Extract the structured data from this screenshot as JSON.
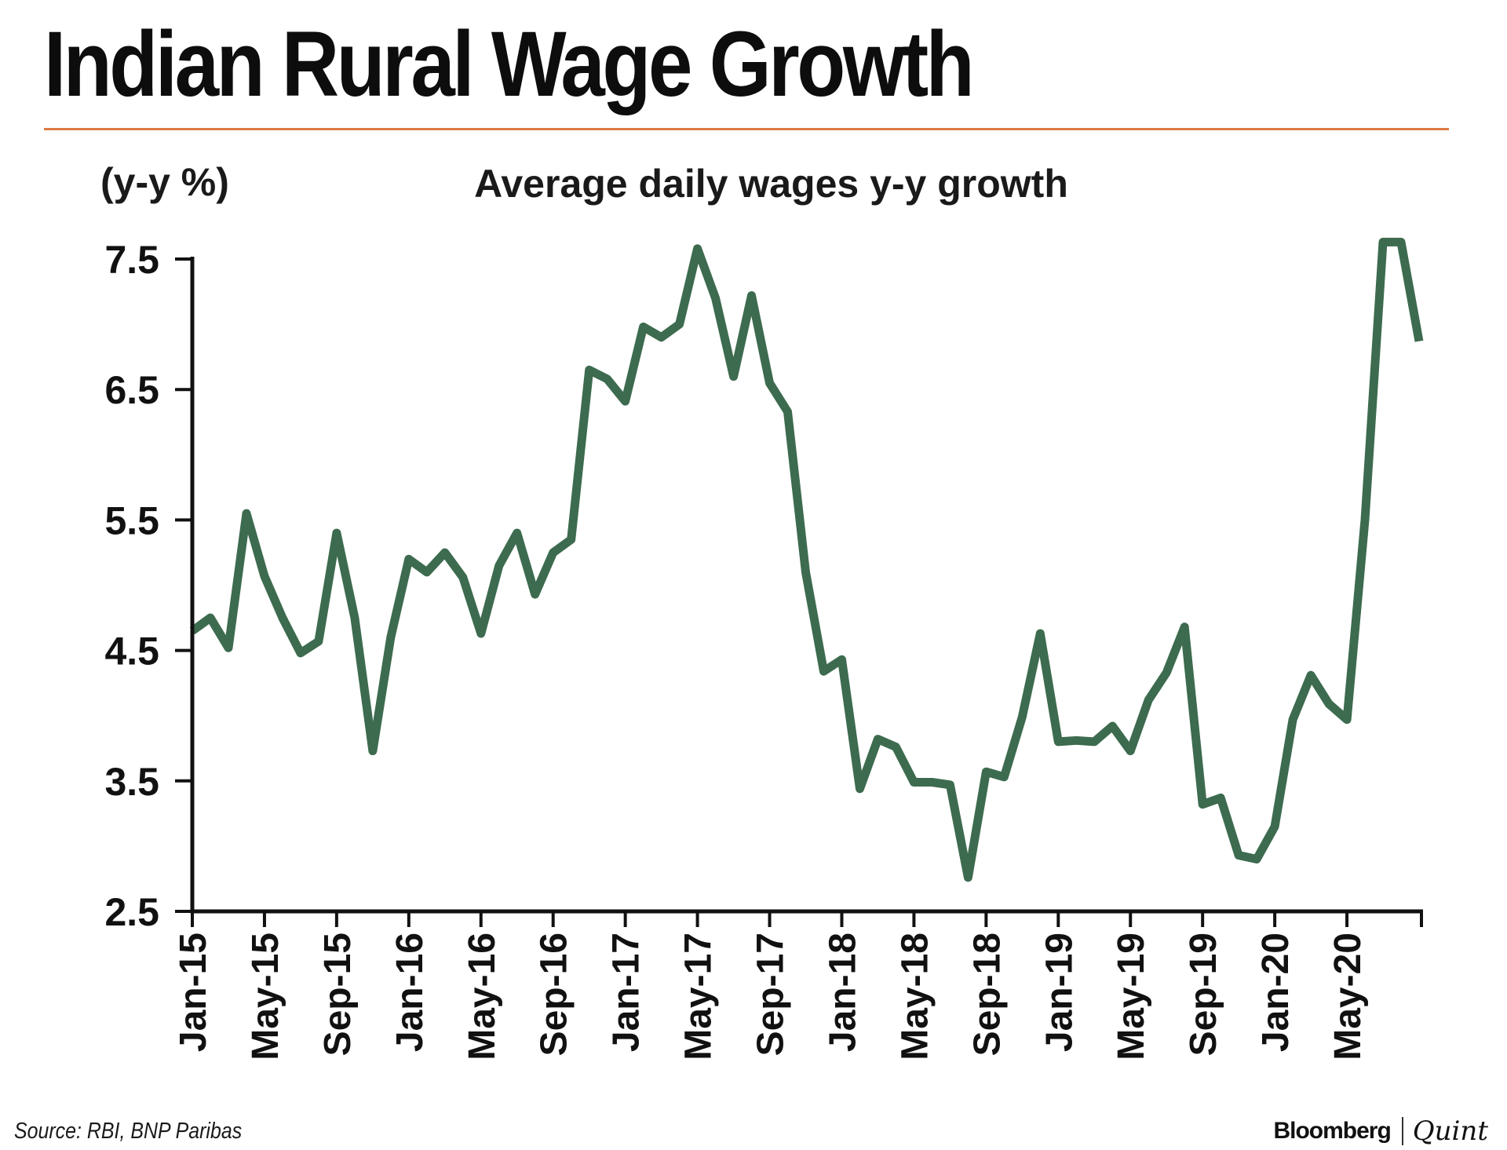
{
  "colors": {
    "rule": "#e07a45",
    "line": "#3d6b4f",
    "axis": "#111111",
    "text": "#111111"
  },
  "header": {
    "title": "Indian Rural Wage Growth"
  },
  "footer": {
    "source": "Source: RBI, BNP Paribas",
    "logo_left": "Bloomberg",
    "logo_right": "Quint"
  },
  "chart_data": {
    "type": "line",
    "title": "Average daily wages y-y growth",
    "ylabel": "(y-y %)",
    "xlabel": "",
    "ylim": [
      2.5,
      8.0
    ],
    "yticks": [
      2.5,
      3.5,
      4.5,
      5.5,
      6.5,
      7.5
    ],
    "ytick_labels": [
      "2.5",
      "3.5",
      "4.5",
      "5.5",
      "6.5",
      "7.5"
    ],
    "x_tick_labels": [
      "Jan-15",
      "May-15",
      "Sep-15",
      "Jan-16",
      "May-16",
      "Sep-16",
      "Jan-17",
      "May-17",
      "Sep-17",
      "Jan-18",
      "May-18",
      "Sep-18",
      "Jan-19",
      "May-19",
      "Sep-19",
      "Jan-20",
      "May-20"
    ],
    "x_tick_months": [
      0,
      4,
      8,
      12,
      16,
      20,
      24,
      28,
      32,
      36,
      40,
      44,
      48,
      52,
      56,
      60,
      64
    ],
    "x_start": "Jan-15",
    "x_end": "Sep-20",
    "grid": false,
    "legend": "none",
    "series": [
      {
        "x": [
          "Jan-15",
          "Feb-15",
          "Mar-15",
          "Apr-15",
          "May-15",
          "Jun-15",
          "Jul-15",
          "Aug-15",
          "Sep-15",
          "Oct-15",
          "Nov-15",
          "Dec-15",
          "Jan-16",
          "Feb-16",
          "Mar-16",
          "Apr-16",
          "May-16",
          "Jun-16",
          "Jul-16",
          "Aug-16",
          "Sep-16",
          "Oct-16",
          "Nov-16",
          "Dec-16",
          "Jan-17",
          "Feb-17",
          "Mar-17",
          "Apr-17",
          "May-17",
          "Jun-17",
          "Jul-17",
          "Aug-17",
          "Sep-17",
          "Oct-17",
          "Nov-17",
          "Dec-17",
          "Jan-18",
          "Feb-18",
          "Mar-18",
          "Apr-18",
          "May-18",
          "Jun-18",
          "Jul-18",
          "Aug-18",
          "Sep-18",
          "Oct-18",
          "Nov-18",
          "Dec-18",
          "Jan-19",
          "Feb-19",
          "Mar-19",
          "Apr-19",
          "May-19",
          "Jun-19",
          "Jul-19",
          "Aug-19",
          "Sep-19",
          "Oct-19",
          "Nov-19",
          "Dec-19",
          "Jan-20",
          "Feb-20",
          "Mar-20",
          "Apr-20",
          "May-20",
          "Jun-20",
          "Jul-20",
          "Aug-20",
          "Sep-20"
        ],
        "values": [
          4.65,
          4.75,
          4.52,
          5.55,
          5.07,
          4.75,
          4.48,
          4.57,
          5.4,
          4.75,
          3.73,
          4.6,
          5.2,
          5.1,
          5.25,
          5.06,
          4.63,
          5.15,
          5.4,
          4.93,
          5.25,
          5.35,
          6.65,
          6.58,
          6.41,
          6.98,
          6.9,
          7.0,
          7.58,
          7.2,
          6.6,
          7.22,
          6.55,
          6.33,
          5.1,
          4.34,
          4.43,
          3.44,
          3.82,
          3.76,
          3.49,
          3.49,
          3.47,
          2.76,
          3.57,
          3.53,
          3.99,
          4.63,
          3.8,
          3.81,
          3.8,
          3.92,
          3.73,
          4.12,
          4.33,
          4.68,
          3.32,
          3.37,
          2.93,
          2.9,
          3.15,
          3.97,
          4.31,
          4.09,
          3.97,
          5.5,
          7.63,
          7.63,
          6.87
        ]
      }
    ]
  }
}
